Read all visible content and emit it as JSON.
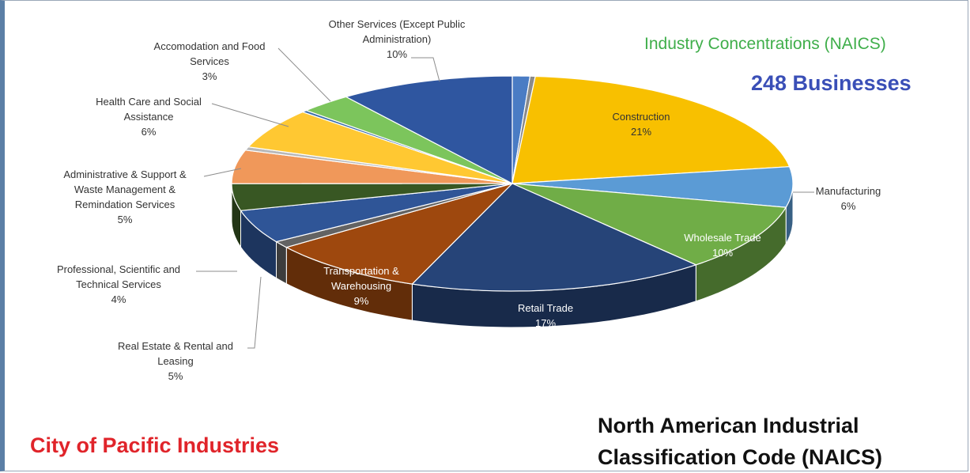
{
  "headings": {
    "concentrations": "Industry Concentrations (NAICS)",
    "businesses": "248 Businesses",
    "city": "City of Pacific Industries",
    "naics_line1": "North American Industrial",
    "naics_line2": "Classification Code (NAICS)"
  },
  "colors": {
    "concentrations": "#3fae4a",
    "businesses": "#3a4fb7",
    "city": "#e0242a",
    "naics": "#111111"
  },
  "chart_data": {
    "type": "pie",
    "style": "3d-exploded",
    "start": "12 o'clock",
    "direction": "clockwise",
    "slices": [
      {
        "label": "",
        "value": 1,
        "color": "#4a7cc4",
        "pct_label": ""
      },
      {
        "label": "",
        "value": 0.3,
        "color": "#8a8a8a",
        "pct_label": ""
      },
      {
        "label": "Construction",
        "value": 21,
        "color": "#f8c000",
        "pct_label": "21%",
        "placement": "inside"
      },
      {
        "label": "Manufacturing",
        "value": 6,
        "color": "#5b9bd5",
        "pct_label": "6%",
        "placement": "outside"
      },
      {
        "label": "Wholesale Trade",
        "value": 10,
        "color": "#70ad47",
        "pct_label": "10%",
        "placement": "inside"
      },
      {
        "label": "Retail Trade",
        "value": 17,
        "color": "#264478",
        "pct_label": "17%",
        "placement": "inside"
      },
      {
        "label": "Transportation & Warehousing",
        "value": 9,
        "color": "#9e480e",
        "pct_label": "9%",
        "placement": "inside"
      },
      {
        "label": "",
        "value": 1,
        "color": "#636363",
        "pct_label": ""
      },
      {
        "label": "Real Estate & Rental and Leasing",
        "value": 5,
        "color": "#2f5597",
        "pct_label": "5%",
        "placement": "outside"
      },
      {
        "label": "Professional, Scientific and Technical Services",
        "value": 4,
        "color": "#385723",
        "pct_label": "4%",
        "placement": "outside"
      },
      {
        "label": "Administrative & Support & Waste Management & Remindation Services",
        "value": 5,
        "color": "#f0985a",
        "pct_label": "5%",
        "placement": "outside"
      },
      {
        "label": "",
        "value": 0.5,
        "color": "#b8b8b8",
        "pct_label": ""
      },
      {
        "label": "Health Care and Social Assistance",
        "value": 6,
        "color": "#ffc832",
        "pct_label": "6%",
        "placement": "outside"
      },
      {
        "label": "",
        "value": 0.3,
        "color": "#3b6ea8",
        "pct_label": ""
      },
      {
        "label": "Accomodation and Food Services",
        "value": 3,
        "color": "#7cc55c",
        "pct_label": "3%",
        "placement": "outside"
      },
      {
        "label": "Other Services (Except Public Administration)",
        "value": 10,
        "color": "#2f56a0",
        "pct_label": "10%",
        "placement": "outside"
      }
    ],
    "labels": {
      "construction": [
        "Construction",
        "21%"
      ],
      "manufacturing": [
        "Manufacturing",
        "6%"
      ],
      "wholesale": [
        "Wholesale Trade",
        "10%"
      ],
      "retail": [
        "Retail Trade",
        "17%"
      ],
      "transport": [
        "Transportation &",
        "Warehousing",
        "9%"
      ],
      "realestate": [
        "Real Estate & Rental and",
        "Leasing",
        "5%"
      ],
      "professional": [
        "Professional, Scientific and",
        "Technical Services",
        "4%"
      ],
      "admin": [
        "Administrative & Support &",
        "Waste Management &",
        "Remindation Services",
        "5%"
      ],
      "health": [
        "Health Care and Social",
        "Assistance",
        "6%"
      ],
      "accommodation": [
        "Accomodation and Food",
        "Services",
        "3%"
      ],
      "other": [
        "Other Services (Except Public",
        "Administration)",
        "10%"
      ]
    }
  }
}
